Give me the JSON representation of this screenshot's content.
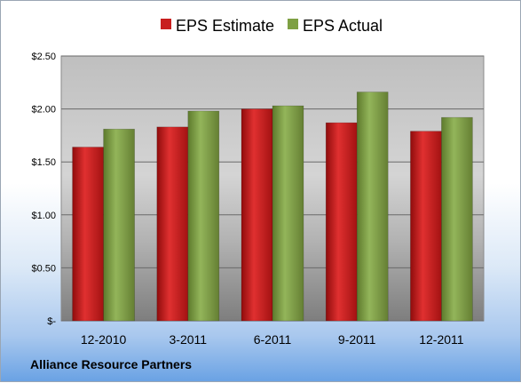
{
  "company": "Alliance Resource Partners",
  "chart_data": {
    "type": "bar",
    "categories": [
      "12-2010",
      "3-2011",
      "6-2011",
      "9-2011",
      "12-2011"
    ],
    "series": [
      {
        "name": "EPS Estimate",
        "values": [
          1.64,
          1.83,
          2.0,
          1.87,
          1.79
        ],
        "color": "#c81e1e"
      },
      {
        "name": "EPS Actual",
        "values": [
          1.81,
          1.98,
          2.03,
          2.16,
          1.92
        ],
        "color": "#7ea043"
      }
    ],
    "yticks": [
      0,
      0.5,
      1.0,
      1.5,
      2.0,
      2.5
    ],
    "ytick_labels": [
      "$-",
      "$0.50",
      "$1.00",
      "$1.50",
      "$2.00",
      "$2.50"
    ],
    "ylim": [
      0,
      2.5
    ],
    "grid": true,
    "legend": "top"
  }
}
